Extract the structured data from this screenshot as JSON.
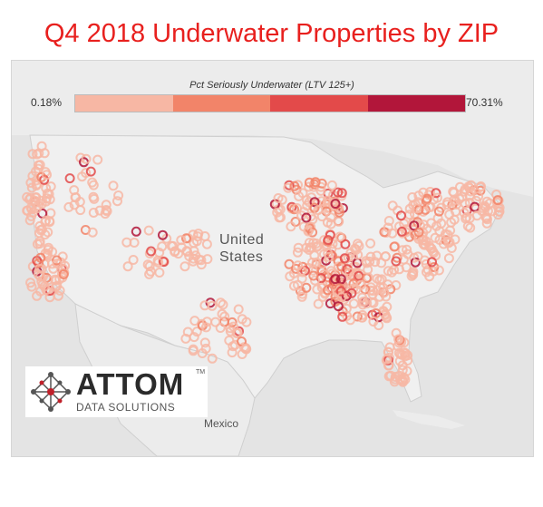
{
  "title": "Q4 2018 Underwater Properties by ZIP",
  "legend": {
    "title": "Pct Seriously Underwater (LTV 125+)",
    "min_label": "0.18%",
    "max_label": "70.31%",
    "colors": [
      "#f7b7a4",
      "#f28469",
      "#e34a4a",
      "#b2163a"
    ]
  },
  "map_labels": {
    "country": "United States",
    "neighbor_south": "Mexico"
  },
  "logo": {
    "name": "ATTOM",
    "trademark": "TM",
    "tagline": "DATA SOLUTIONS",
    "icon": "network-diamond-icon"
  },
  "colors": {
    "title": "#e8201e",
    "land": "#ececec",
    "water": "#e4e4e4",
    "border": "#c8c8c8"
  }
}
